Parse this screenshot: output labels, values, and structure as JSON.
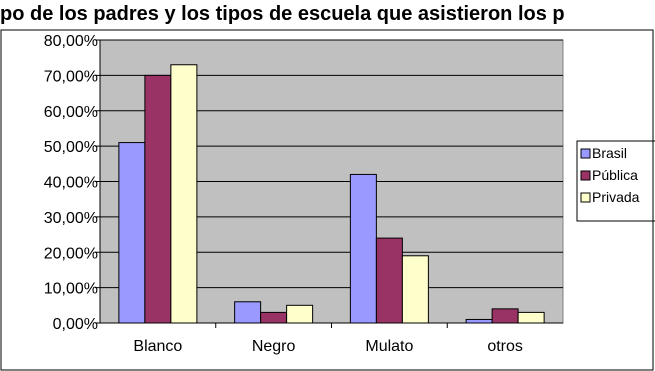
{
  "chart_data": {
    "type": "bar",
    "title": "po de los padres y los tipos de escuela que asistieron los p",
    "categories": [
      "Blanco",
      "Negro",
      "Mulato",
      "otros"
    ],
    "series": [
      {
        "name": "Brasil",
        "values": [
          0.51,
          0.06,
          0.42,
          0.01
        ],
        "color": "#9999ff"
      },
      {
        "name": "Pública",
        "values": [
          0.7,
          0.03,
          0.24,
          0.04
        ],
        "color": "#993366"
      },
      {
        "name": "Privada",
        "values": [
          0.73,
          0.05,
          0.19,
          0.03
        ],
        "color": "#ffffcc"
      }
    ],
    "y_ticks": [
      "0,00%",
      "10,00%",
      "20,00%",
      "30,00%",
      "40,00%",
      "50,00%",
      "60,00%",
      "70,00%",
      "80,00%"
    ],
    "ylim": [
      0,
      0.8
    ],
    "xlabel": "",
    "ylabel": "",
    "grid": true,
    "legend_position": "right",
    "plot_background": "#c0c0c0"
  }
}
